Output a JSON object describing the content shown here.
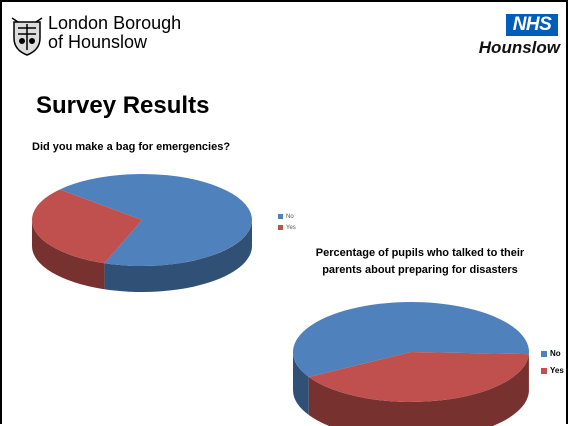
{
  "header": {
    "council_line1": "London Borough",
    "council_line2": "of Hounslow",
    "nhs_logo": "NHS",
    "nhs_sub": "Hounslow"
  },
  "slide": {
    "title": "Survey Results"
  },
  "colors": {
    "no": "#4f81bd",
    "yes": "#c0504d",
    "nhs_blue": "#005eb8"
  },
  "chart_data": [
    {
      "type": "pie",
      "title": "Did you make a bag for emergencies?",
      "categories": [
        "No",
        "Yes"
      ],
      "values": [
        69,
        31
      ],
      "legend_position": "right"
    },
    {
      "type": "pie",
      "title_lines": [
        "Percentage of pupils who talked to their",
        "parents about preparing for disasters"
      ],
      "categories": [
        "No",
        "Yes"
      ],
      "values": [
        59,
        41
      ],
      "legend_position": "right"
    }
  ]
}
